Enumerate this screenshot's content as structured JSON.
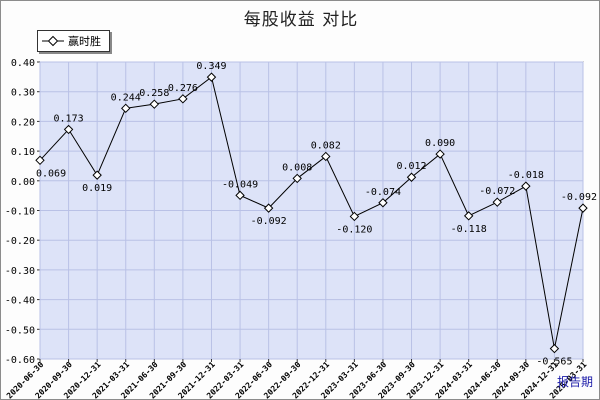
{
  "title": "每股收益  对比",
  "period_label": "报告期",
  "legend": {
    "series_name": "赢时胜"
  },
  "chart_data": {
    "type": "line",
    "title": "每股收益  对比",
    "xlabel": "报告期",
    "ylabel": "",
    "ylim": [
      -0.6,
      0.4
    ],
    "yticks": [
      "0.40",
      "0.30",
      "0.20",
      "0.10",
      "0.00",
      "-0.10",
      "-0.20",
      "-0.30",
      "-0.40",
      "-0.50",
      "-0.60"
    ],
    "grid": true,
    "legend_position": "top-left",
    "categories": [
      "2020-06-30",
      "2020-09-30",
      "2020-12-31",
      "2021-03-31",
      "2021-06-30",
      "2021-09-30",
      "2021-12-31",
      "2022-03-31",
      "2022-06-30",
      "2022-09-30",
      "2022-12-31",
      "2023-03-31",
      "2023-06-30",
      "2023-09-30",
      "2023-12-31",
      "2024-03-31",
      "2024-06-30",
      "2024-09-30",
      "2024-12-31",
      "2025-03-31"
    ],
    "series": [
      {
        "name": "赢时胜",
        "values": [
          0.069,
          0.173,
          0.019,
          0.244,
          0.258,
          0.276,
          0.349,
          -0.049,
          -0.092,
          0.008,
          0.082,
          -0.12,
          -0.074,
          0.012,
          0.09,
          -0.118,
          -0.072,
          -0.018,
          -0.565,
          -0.092
        ],
        "labels": [
          "0.069",
          "0.173",
          "0.019",
          "0.244",
          "0.258",
          "0.276",
          "0.349",
          "-0.049",
          "-0.092",
          "0.008",
          "0.082",
          "-0.120",
          "-0.074",
          "0.012",
          "0.090",
          "-0.118",
          "-0.072",
          "-0.018",
          "-0.565",
          "-0.092"
        ],
        "color": "#000000"
      }
    ],
    "colors": {
      "plot_background": "#dde3f8",
      "grid": "#b9c1e6",
      "line": "#000000",
      "marker_fill": "#ffffff"
    }
  }
}
